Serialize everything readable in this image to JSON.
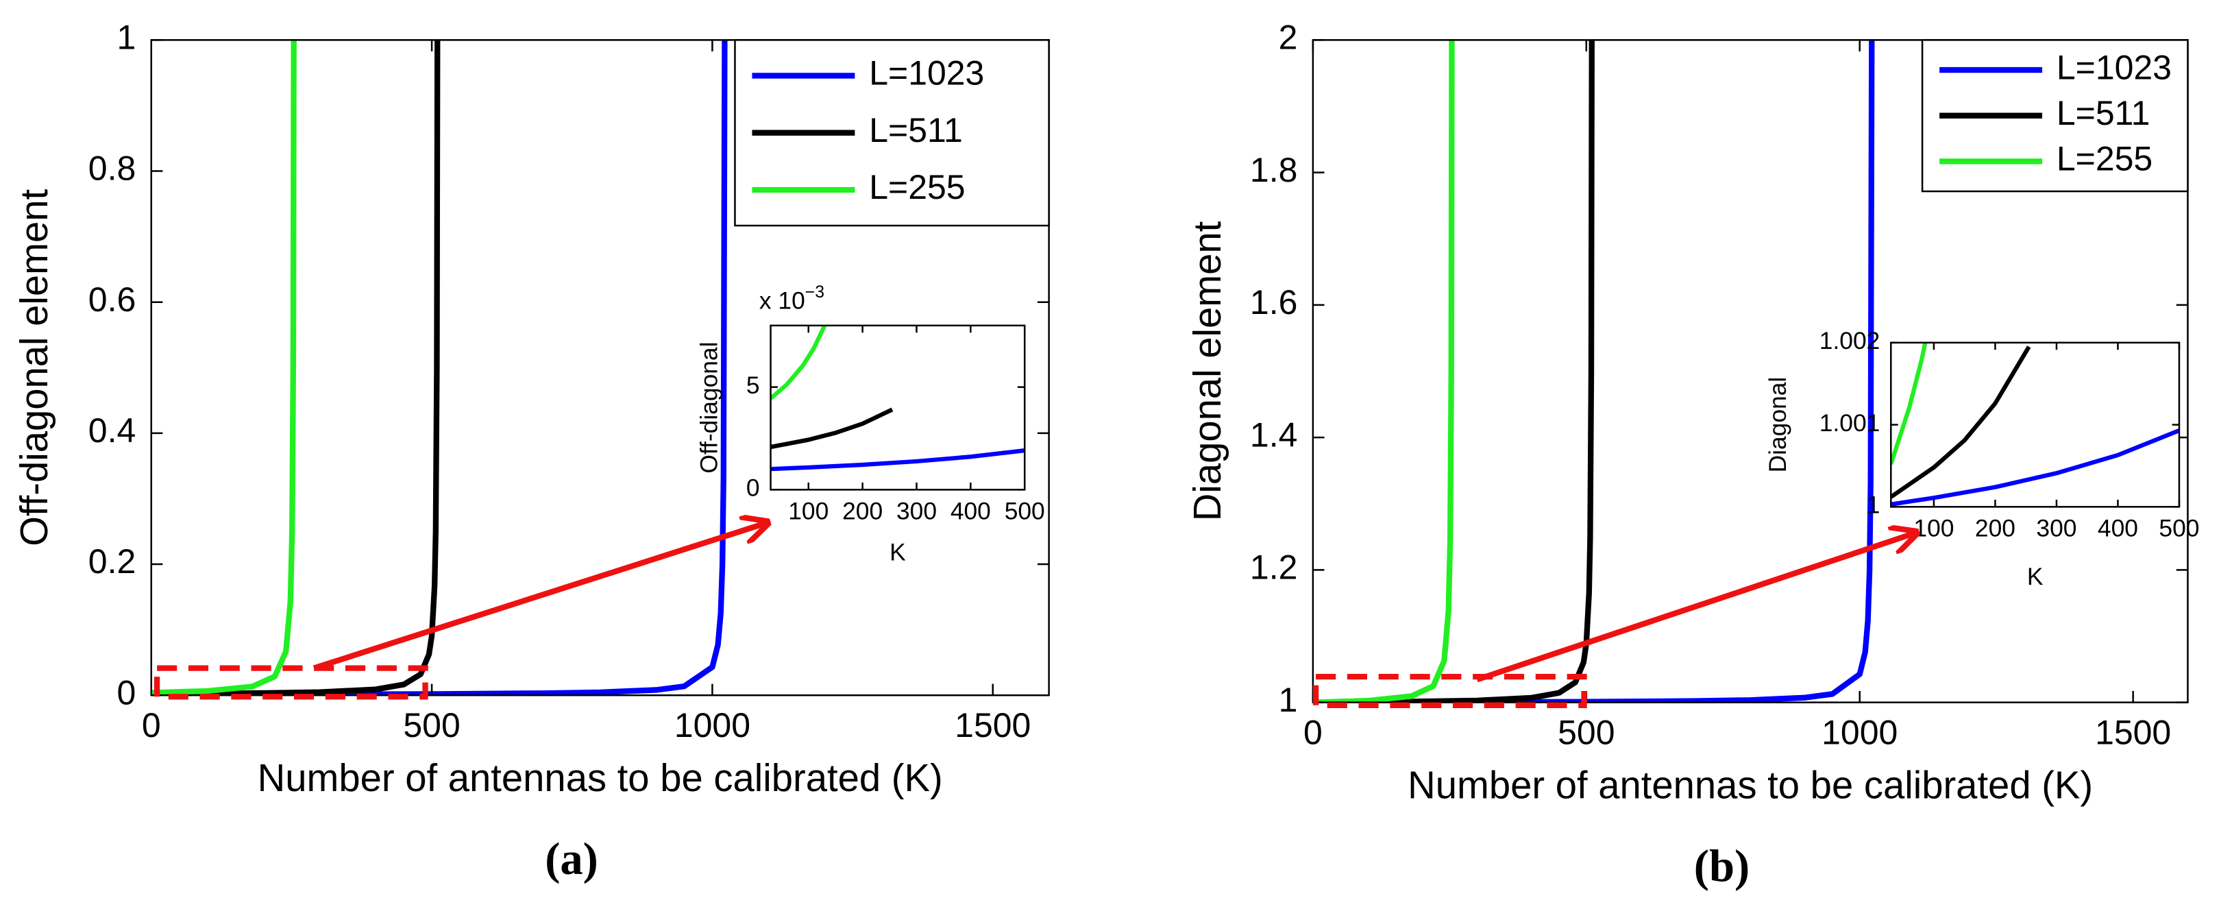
{
  "chart_data": [
    {
      "type": "line",
      "ylabel": "Off-diagonal element",
      "xlabel": "Number of antennas to be calibrated (K)",
      "caption": "(a)",
      "xlim": [
        0,
        1600
      ],
      "xticks": [
        0,
        500,
        1000,
        1500
      ],
      "ylim": [
        0,
        1
      ],
      "yticks": [
        0,
        0.2,
        0.4,
        0.6,
        0.8,
        1
      ],
      "grid": false,
      "legend": "northeast",
      "series": [
        {
          "name": "L=1023",
          "color": "#0000ff",
          "x": [
            0,
            250,
            500,
            700,
            800,
            900,
            950,
            1000,
            1010,
            1015,
            1018,
            1020,
            1022
          ],
          "values": [
            0.00098,
            0.0013,
            0.0019,
            0.0031,
            0.0045,
            0.0081,
            0.0137,
            0.043,
            0.077,
            0.125,
            0.2,
            0.333,
            1
          ]
        },
        {
          "name": "L=511",
          "color": "#000000",
          "x": [
            0,
            150,
            300,
            400,
            450,
            480,
            495,
            500,
            505,
            507,
            509,
            510
          ],
          "values": [
            0.00196,
            0.0028,
            0.0047,
            0.009,
            0.0164,
            0.032,
            0.0625,
            0.091,
            0.167,
            0.25,
            0.5,
            1
          ]
        },
        {
          "name": "L=255",
          "color": "#22ee22",
          "x": [
            0,
            100,
            180,
            220,
            240,
            248,
            251,
            253,
            254
          ],
          "values": [
            0.0039,
            0.0065,
            0.0133,
            0.0286,
            0.0667,
            0.143,
            0.25,
            0.5,
            1
          ]
        }
      ]
    },
    {
      "type": "line",
      "ylabel": "Off-diagonal",
      "xlabel": "K",
      "y_multiplier": {
        "base": "x 10",
        "exponent": "−3"
      },
      "xlim": [
        30,
        500
      ],
      "xticks": [
        100,
        200,
        300,
        400,
        500
      ],
      "ylim": [
        0,
        8
      ],
      "yticks": [
        0,
        5
      ],
      "grid": false,
      "series": [
        {
          "color": "#0000ff",
          "x": [
            30,
            100,
            200,
            300,
            400,
            500
          ],
          "values": [
            1.007,
            1.083,
            1.215,
            1.383,
            1.605,
            1.912
          ]
        },
        {
          "color": "#000000",
          "x": [
            30,
            100,
            150,
            200,
            255
          ],
          "values": [
            2.079,
            2.433,
            2.77,
            3.215,
            3.906
          ]
        },
        {
          "color": "#22ee22",
          "x": [
            30,
            60,
            90,
            110,
            130
          ],
          "values": [
            4.444,
            5.128,
            6.06,
            6.897,
            8
          ]
        }
      ]
    },
    {
      "type": "line",
      "ylabel": "Diagonal element",
      "xlabel": "Number of antennas to be calibrated (K)",
      "caption": "(b)",
      "xlim": [
        0,
        1600
      ],
      "xticks": [
        0,
        500,
        1000,
        1500
      ],
      "ylim": [
        1,
        2
      ],
      "yticks": [
        1,
        1.2,
        1.4,
        1.6,
        1.8,
        2
      ],
      "grid": false,
      "legend": "northeast",
      "series": [
        {
          "name": "L=1023",
          "color": "#0000ff",
          "x": [
            0,
            250,
            500,
            700,
            800,
            900,
            950,
            1000,
            1010,
            1015,
            1018,
            1020,
            1022
          ],
          "values": [
            1,
            1.0003,
            1.00093,
            1.0021,
            1.0035,
            1.0072,
            1.0127,
            1.0425,
            1.076,
            1.124,
            1.199,
            1.332,
            2
          ]
        },
        {
          "name": "L=511",
          "color": "#000000",
          "x": [
            0,
            150,
            300,
            400,
            450,
            480,
            495,
            500,
            505,
            507,
            509,
            510
          ],
          "values": [
            1,
            1.0008,
            1.0028,
            1.007,
            1.0144,
            1.0303,
            1.0605,
            1.089,
            1.165,
            1.248,
            1.498,
            2
          ]
        },
        {
          "name": "L=255",
          "color": "#22ee22",
          "x": [
            0,
            100,
            180,
            220,
            240,
            248,
            251,
            253,
            254
          ],
          "values": [
            1,
            1.0025,
            1.0094,
            1.0246,
            1.0627,
            1.139,
            1.246,
            1.496,
            2
          ]
        }
      ]
    },
    {
      "type": "line",
      "ylabel": "Diagonal",
      "xlabel": "K",
      "xlim": [
        30,
        500
      ],
      "xticks": [
        100,
        200,
        300,
        400,
        500
      ],
      "ylim": [
        1,
        1.002
      ],
      "yticks": [
        1,
        1.001,
        1.002
      ],
      "grid": false,
      "series": [
        {
          "color": "#0000ff",
          "x": [
            30,
            100,
            200,
            300,
            400,
            500
          ],
          "values": [
            1.00003,
            1.00011,
            1.00024,
            1.00041,
            1.00063,
            1.00093
          ]
        },
        {
          "color": "#000000",
          "x": [
            30,
            100,
            150,
            200,
            255
          ],
          "values": [
            1.00012,
            1.00048,
            1.00081,
            1.00126,
            1.00195
          ]
        },
        {
          "color": "#22ee22",
          "x": [
            30,
            60,
            80,
            86
          ],
          "values": [
            1.00052,
            1.00121,
            1.00179,
            1.002
          ]
        }
      ]
    }
  ]
}
